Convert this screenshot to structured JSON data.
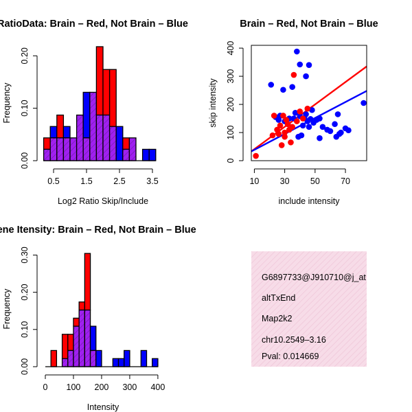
{
  "colors": {
    "brain": "#ff0000",
    "not_brain": "#0000ff",
    "overlap": "#a020f0",
    "info_panel": "#f7dce8",
    "info_hatch": "#efc6d8",
    "pval": "#cc0033"
  },
  "chart_data": [
    {
      "id": "ratio_hist",
      "type": "bar",
      "subtype": "overlaid-histogram",
      "title": "RatioData: Brain – Red, Not Brain – Blue",
      "xlabel": "Log2 Ratio Skip/Include",
      "ylabel": "Frequency",
      "xlim": [
        0.25,
        3.75
      ],
      "ylim": [
        0,
        0.22
      ],
      "xticks": [
        "0.5",
        "1.5",
        "2.5",
        "3.5"
      ],
      "xtick_values": [
        0.5,
        1.5,
        2.5,
        3.5
      ],
      "yticks": [
        "0.00",
        "0.10",
        "0.20"
      ],
      "ytick_values": [
        0,
        0.1,
        0.2
      ],
      "bin_width": 0.2,
      "bins_start": [
        0.2,
        0.4,
        0.6,
        0.8,
        1.0,
        1.2,
        1.4,
        1.6,
        1.8,
        2.0,
        2.2,
        2.4,
        2.6,
        2.8,
        3.0,
        3.2,
        3.4
      ],
      "series": [
        {
          "name": "Brain",
          "color": "red",
          "values": [
            0.0435,
            0.0435,
            0.087,
            0.0435,
            0.0435,
            0.087,
            0.0435,
            0.1304,
            0.2174,
            0.1739,
            0.1739,
            0,
            0.0435,
            0.0435,
            0,
            0,
            0
          ]
        },
        {
          "name": "Not Brain",
          "color": "blue",
          "values": [
            0.0217,
            0.0652,
            0.0435,
            0.0652,
            0.0435,
            0.087,
            0.1304,
            0.1304,
            0.087,
            0.087,
            0.0652,
            0.0652,
            0.0217,
            0.0435,
            0,
            0.0217,
            0.0217
          ]
        }
      ]
    },
    {
      "id": "scatter",
      "type": "scatter",
      "title": "Brain – Red, Not Brain – Blue",
      "xlabel": "include intensity",
      "ylabel": "skip intensity",
      "xlim": [
        8,
        84
      ],
      "ylim": [
        0,
        410
      ],
      "xticks": [
        "10",
        "30",
        "50",
        "70"
      ],
      "xtick_values": [
        10,
        30,
        50,
        70
      ],
      "yticks": [
        "0",
        "100",
        "200",
        "300",
        "400"
      ],
      "ytick_values": [
        0,
        100,
        200,
        300,
        400
      ],
      "series": [
        {
          "name": "Not Brain",
          "color": "blue",
          "points": [
            [
              38,
              388
            ],
            [
              40,
              342
            ],
            [
              46,
              340
            ],
            [
              44,
              300
            ],
            [
              29,
              252
            ],
            [
              21,
              270
            ],
            [
              35,
              262
            ],
            [
              24,
              155
            ],
            [
              27,
              160
            ],
            [
              33,
              150
            ],
            [
              37,
              170
            ],
            [
              40,
              158
            ],
            [
              43,
              152
            ],
            [
              45,
              140
            ],
            [
              47,
              148
            ],
            [
              49,
              135
            ],
            [
              51,
              145
            ],
            [
              53,
              150
            ],
            [
              48,
              180
            ],
            [
              55,
              120
            ],
            [
              58,
              110
            ],
            [
              60,
              105
            ],
            [
              63,
              130
            ],
            [
              65,
              165
            ],
            [
              66,
              95
            ],
            [
              64,
              85
            ],
            [
              67,
              100
            ],
            [
              70,
              115
            ],
            [
              72,
              108
            ],
            [
              82,
              205
            ],
            [
              53,
              80
            ],
            [
              41,
              90
            ],
            [
              39,
              85
            ],
            [
              36,
              150
            ],
            [
              32,
              130
            ],
            [
              30,
              140
            ],
            [
              42,
              125
            ],
            [
              46,
              120
            ],
            [
              44,
              165
            ],
            [
              26,
              145
            ]
          ]
        },
        {
          "name": "Brain",
          "color": "red",
          "points": [
            [
              11,
              17
            ],
            [
              22,
              90
            ],
            [
              25,
              110
            ],
            [
              27,
              125
            ],
            [
              28,
              55
            ],
            [
              30,
              100
            ],
            [
              32,
              130
            ],
            [
              34,
              65
            ],
            [
              36,
              305
            ],
            [
              38,
              140
            ],
            [
              40,
              175
            ],
            [
              45,
              185
            ],
            [
              29,
              160
            ],
            [
              31,
              145
            ],
            [
              26,
              95
            ],
            [
              23,
              160
            ],
            [
              33,
              110
            ],
            [
              42,
              150
            ],
            [
              35,
              120
            ],
            [
              30,
              85
            ]
          ]
        }
      ],
      "fit_lines": [
        {
          "name": "Brain fit",
          "color": "red",
          "x": [
            8,
            84
          ],
          "y": [
            33,
            335
          ]
        },
        {
          "name": "Not Brain fit",
          "color": "blue",
          "x": [
            8,
            84
          ],
          "y": [
            33,
            248
          ]
        }
      ]
    },
    {
      "id": "intensity_hist",
      "type": "bar",
      "subtype": "overlaid-histogram",
      "title": "Gene Itensity: Brain – Red, Not Brain – Blue",
      "xlabel": "Intensity",
      "ylabel": "Frequency",
      "xlim": [
        0,
        410
      ],
      "ylim": [
        0,
        0.31
      ],
      "xticks": [
        "0",
        "100",
        "200",
        "300",
        "400"
      ],
      "xtick_values": [
        0,
        100,
        200,
        300,
        400
      ],
      "yticks": [
        "0.00",
        "0.10",
        "0.20",
        "0.30"
      ],
      "ytick_values": [
        0,
        0.1,
        0.2,
        0.3
      ],
      "bin_width": 20,
      "bins_start": [
        0,
        20,
        40,
        60,
        80,
        100,
        120,
        140,
        160,
        180,
        200,
        220,
        240,
        260,
        280,
        300,
        320,
        340,
        360,
        380
      ],
      "series": [
        {
          "name": "Brain",
          "color": "red",
          "values": [
            0,
            0.0435,
            0,
            0.087,
            0.087,
            0.1304,
            0.1739,
            0.3043,
            0.0435,
            0,
            0,
            0,
            0,
            0,
            0,
            0,
            0,
            0,
            0,
            0
          ]
        },
        {
          "name": "Not Brain",
          "color": "blue",
          "values": [
            0,
            0,
            0,
            0.0217,
            0.0435,
            0.1087,
            0.1522,
            0.1522,
            0.1087,
            0.0435,
            0,
            0,
            0.0217,
            0.0217,
            0.0435,
            0,
            0,
            0.0435,
            0,
            0.0217
          ]
        }
      ]
    }
  ],
  "info_panel": {
    "id_line": "G6897733@J910710@j_at",
    "event": "altTxEnd",
    "gene": "Map2k2",
    "location": "chr10.2549–3.16",
    "pval": "Pval: 0.014669"
  }
}
